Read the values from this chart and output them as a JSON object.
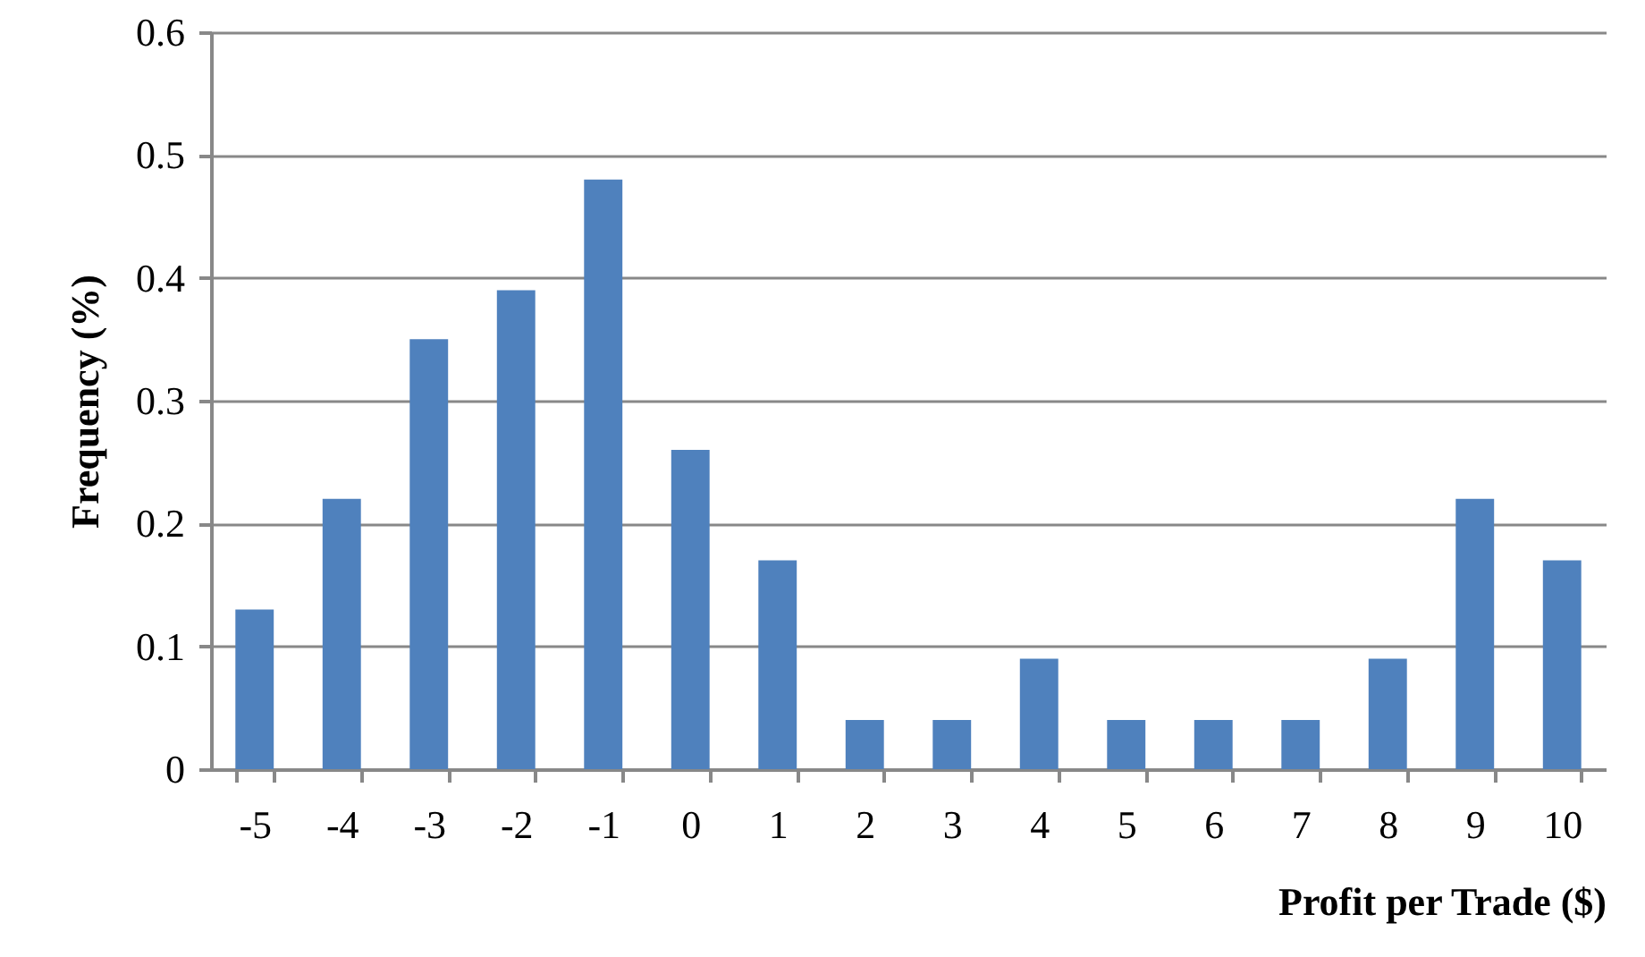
{
  "chart_data": {
    "type": "bar",
    "xlabel": "Profit per Trade ($)",
    "ylabel": "Frequency  (%)",
    "categories": [
      "-5",
      "-4",
      "-3",
      "-2",
      "-1",
      "0",
      "1",
      "2",
      "3",
      "4",
      "5",
      "6",
      "7",
      "8",
      "9",
      "10"
    ],
    "values": [
      0.13,
      0.22,
      0.35,
      0.39,
      0.48,
      0.26,
      0.17,
      0.04,
      0.04,
      0.09,
      0.04,
      0.04,
      0.04,
      0.09,
      0.22,
      0.17
    ],
    "color": "#4f81bd",
    "ylim": [
      0,
      0.6
    ],
    "yticks": [
      0,
      0.1,
      0.2,
      0.3,
      0.4,
      0.5,
      0.6
    ],
    "grid": "y"
  }
}
